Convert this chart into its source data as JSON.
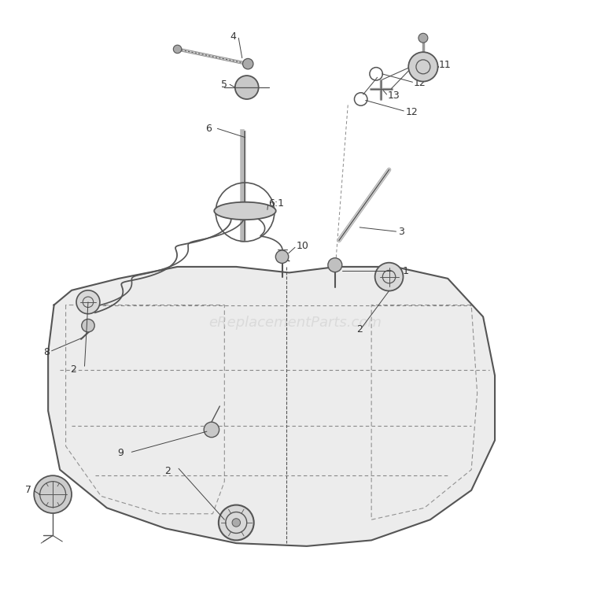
{
  "bg_color": "#ffffff",
  "line_color": "#555555",
  "text_color": "#333333",
  "watermark": "eReplacementParts.com",
  "watermark_color": "#cccccc",
  "fig_width": 7.5,
  "fig_height": 7.75
}
